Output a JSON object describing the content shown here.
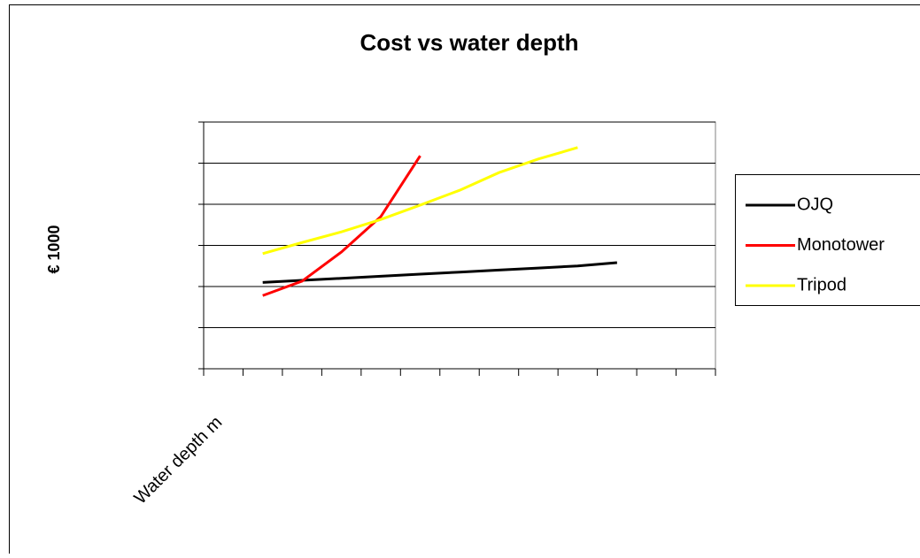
{
  "chart_data": {
    "type": "line",
    "title": "Cost vs water depth",
    "x_label": "Water depth m",
    "y_label": "€ 1000",
    "categories": [
      null,
      null,
      null,
      null,
      null,
      null,
      null,
      null,
      null,
      null,
      null,
      null,
      null
    ],
    "series": [
      {
        "name": "OJQ",
        "color": "#000000",
        "values": [
          null,
          2.1,
          2.15,
          2.2,
          2.25,
          2.3,
          2.35,
          2.4,
          2.45,
          2.5,
          2.58,
          null,
          null
        ]
      },
      {
        "name": "Monotower",
        "color": "#ff0000",
        "values": [
          null,
          1.78,
          2.13,
          2.84,
          3.7,
          5.18,
          null,
          null,
          null,
          null,
          null,
          null,
          null
        ]
      },
      {
        "name": "Tripod",
        "color": "#ffff00",
        "values": [
          null,
          2.8,
          3.07,
          3.33,
          3.63,
          3.98,
          4.34,
          4.77,
          5.1,
          5.38,
          null,
          null,
          null
        ]
      }
    ],
    "ylim": [
      0,
      6
    ],
    "yticks": [
      0,
      1,
      2,
      3,
      4,
      5,
      6
    ],
    "grid": true,
    "legend": "right"
  }
}
